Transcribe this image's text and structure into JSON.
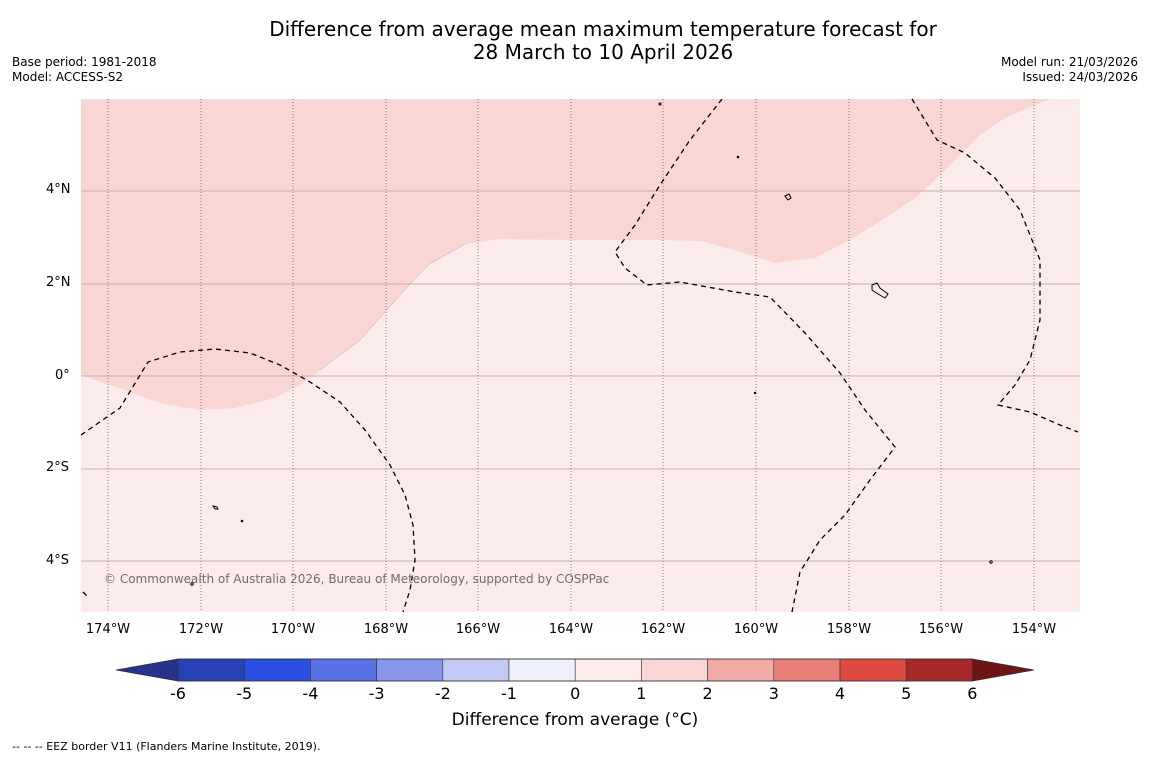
{
  "title": {
    "line1": "Difference from average mean maximum temperature forecast for",
    "line2": "28 March to 10 April 2026"
  },
  "meta": {
    "base_period": "Base period: 1981-2018",
    "model": "Model: ACCESS-S2",
    "model_run": "Model run: 21/03/2026",
    "issued": "Issued: 24/03/2026"
  },
  "copyright": "© Commonwealth of Australia 2026, Bureau of Meteorology, supported by COSPPac",
  "axes": {
    "y_labels": [
      "4°N",
      "2°N",
      "0°",
      "2°S",
      "4°S"
    ],
    "x_labels": [
      "174°W",
      "172°W",
      "170°W",
      "168°W",
      "166°W",
      "164°W",
      "162°W",
      "160°W",
      "158°W",
      "156°W",
      "154°W"
    ]
  },
  "colorbar": {
    "title": "Difference from average (°C)",
    "ticks": [
      "-6",
      "-5",
      "-4",
      "-3",
      "-2",
      "-1",
      "0",
      "1",
      "2",
      "3",
      "4",
      "5",
      "6"
    ],
    "colors": [
      "#26328c",
      "#2841b4",
      "#2d4fe0",
      "#5a72e6",
      "#8796ec",
      "#c3c9f5",
      "#eef0fb",
      "#fbebea",
      "#f7d6d3",
      "#efaaa6",
      "#e87f78",
      "#dc4a40",
      "#a8272a",
      "#6e1515"
    ]
  },
  "map_colors": {
    "anomaly_0_1": "#fbebea",
    "anomaly_1_2": "#f7d6d3"
  },
  "footer": "--  --  -- EEZ border V11 (Flanders Marine Institute, 2019)."
}
